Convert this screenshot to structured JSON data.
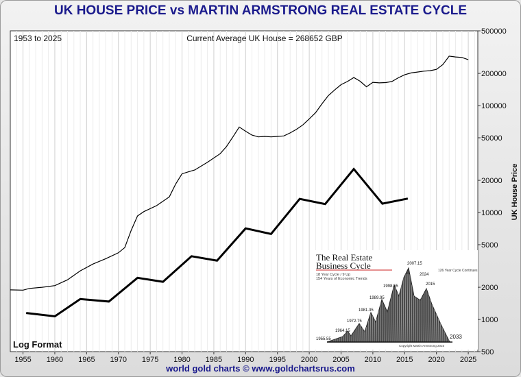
{
  "header": {
    "title": "UK HOUSE PRICE vs MARTIN ARMSTRONG REAL ESTATE CYCLE"
  },
  "footer": {
    "credit": "world gold charts © www.goldchartsrus.com"
  },
  "chart_data": {
    "type": "line",
    "title": "UK HOUSE PRICE vs MARTIN ARMSTRONG REAL ESTATE CYCLE",
    "date_range_label": "1953 to 2025",
    "current_label": "Current Average UK House = 268652 GBP",
    "scale_label": "Log Format",
    "ylabel": "UK House Price",
    "xlabel": "",
    "y_scale": "log",
    "xlim": [
      1953,
      2026.5
    ],
    "ylim": [
      500,
      500000
    ],
    "x_ticks": [
      1955,
      1960,
      1965,
      1970,
      1975,
      1980,
      1985,
      1990,
      1995,
      2000,
      2005,
      2010,
      2015,
      2020,
      2025
    ],
    "y_ticks": [
      500,
      1000,
      2000,
      5000,
      10000,
      20000,
      50000,
      100000,
      200000,
      500000
    ],
    "grid": "vertical",
    "line_colors": {
      "house_price": "#000000",
      "cycle": "#000000"
    },
    "series": [
      {
        "key": "house_price",
        "x": [
          1953,
          1955,
          1956,
          1958,
          1960,
          1962,
          1964,
          1966,
          1968,
          1970,
          1971,
          1972,
          1973,
          1974,
          1976,
          1978,
          1979,
          1980,
          1981,
          1982,
          1984,
          1986,
          1987,
          1988,
          1989,
          1990,
          1991,
          1992,
          1993,
          1994,
          1995,
          1996,
          1997,
          1998,
          1999,
          2000,
          2001,
          2002,
          2003,
          2004,
          2005,
          2006,
          2007,
          2008,
          2009,
          2010,
          2011,
          2012,
          2013,
          2014,
          2015,
          2016,
          2017,
          2018,
          2019,
          2020,
          2021,
          2022,
          2023,
          2024,
          2025
        ],
        "values": [
          1890,
          1880,
          1950,
          2000,
          2070,
          2350,
          2850,
          3300,
          3700,
          4200,
          4700,
          6800,
          9300,
          10200,
          11600,
          14000,
          18500,
          23000,
          24000,
          25000,
          29500,
          35500,
          41500,
          51000,
          63000,
          57500,
          53000,
          51000,
          51500,
          51000,
          51500,
          52000,
          55500,
          60000,
          66000,
          75000,
          86000,
          104000,
          124000,
          140000,
          157000,
          168000,
          183000,
          169000,
          150000,
          165000,
          163000,
          164000,
          168000,
          182000,
          194000,
          202000,
          206000,
          210000,
          212000,
          218000,
          242000,
          290000,
          285000,
          282000,
          268652
        ]
      },
      {
        "key": "cycle",
        "x": [
          1955.5,
          1960,
          1964,
          1968.5,
          1973,
          1977,
          1981.5,
          1985.5,
          1990,
          1994,
          1998.5,
          2002.5,
          2007,
          2011.5,
          2015.5
        ],
        "values": [
          1150,
          1070,
          1550,
          1470,
          2450,
          2250,
          3900,
          3550,
          7100,
          6300,
          13400,
          12000,
          25500,
          12100,
          13500
        ]
      }
    ]
  },
  "inset": {
    "title_line1": "The Real Estate",
    "title_line2": "Business Cycle",
    "subtitle_line1": "18 Year Cycle / 9 Up",
    "subtitle_line2": "154 Years of Economic Trends",
    "peaks": [
      "1955.55",
      "1964.15",
      "1972.75",
      "1981.35",
      "1989.95",
      "1998.55",
      "2007.15",
      "2015",
      "2024"
    ],
    "end_label": "2033",
    "right_note": "126 Year Cycle Continues",
    "credit": "Copyright Martin Armstrong 2015"
  }
}
